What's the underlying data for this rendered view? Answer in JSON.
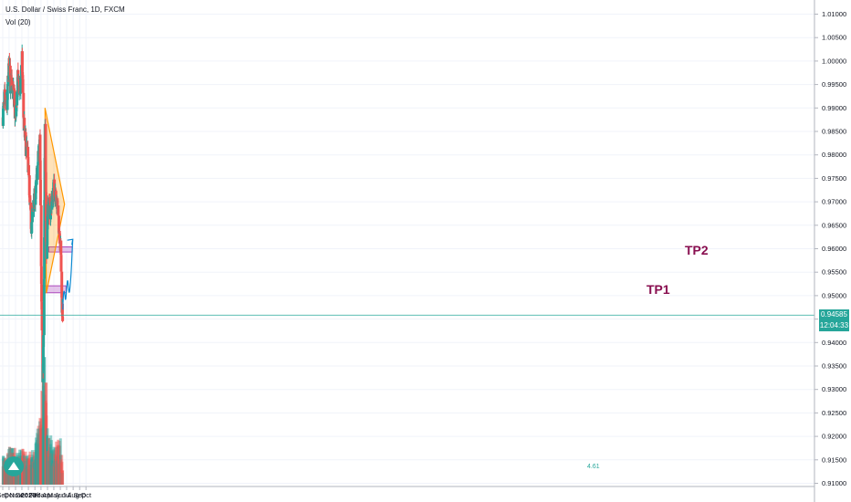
{
  "legend": {
    "symbol_line": "U.S. Dollar / Swiss Franc, 1D, FXCM",
    "volume_line": "Vol (20)"
  },
  "price_scale": {
    "current_price": "0.94585",
    "countdown": "12:04:33",
    "badge_color": "#26a69a",
    "countdown_color": "#26a69a"
  },
  "annotations": {
    "tp1": "TP1",
    "tp2": "TP2",
    "triangle_color": "#ff9800",
    "zone_color": "#ce93d8",
    "tp_color": "#880e4f",
    "path_color": "#0c8ad2",
    "volume_note": "4.61"
  },
  "chart_data": {
    "type": "candlestick",
    "title": "U.S. Dollar / Swiss Franc, 1D, FXCM",
    "indicator": "Vol (20)",
    "up_color": "#26a69a",
    "down_color": "#ef5350",
    "y_ticks": [
      "1.01000",
      "1.00500",
      "1.00000",
      "0.99500",
      "0.99000",
      "0.98500",
      "0.98000",
      "0.97500",
      "0.97000",
      "0.96500",
      "0.96000",
      "0.95500",
      "0.95000",
      "0.94500",
      "0.94000",
      "0.93500",
      "0.93000",
      "0.92500",
      "0.92000",
      "0.91500",
      "0.91000"
    ],
    "ylim": [
      0.91,
      1.0125
    ],
    "x_ticks": [
      "Sep",
      "Oct",
      "Nov",
      "Dec",
      "2020",
      "Feb",
      "Mar",
      "Apr",
      "May",
      "Jun",
      "Jul",
      "Aug",
      "Sep",
      "Oct"
    ],
    "close_path": [
      {
        "date": "2019-09-01",
        "close": 0.988
      },
      {
        "date": "2019-09-10",
        "close": 0.992
      },
      {
        "date": "2019-09-20",
        "close": 0.99
      },
      {
        "date": "2019-10-01",
        "close": 0.999
      },
      {
        "date": "2019-10-08",
        "close": 0.995
      },
      {
        "date": "2019-10-15",
        "close": 0.996
      },
      {
        "date": "2019-10-25",
        "close": 0.992
      },
      {
        "date": "2019-11-01",
        "close": 0.987
      },
      {
        "date": "2019-11-12",
        "close": 0.996
      },
      {
        "date": "2019-11-22",
        "close": 0.993
      },
      {
        "date": "2019-12-02",
        "close": 1.0
      },
      {
        "date": "2019-12-10",
        "close": 0.987
      },
      {
        "date": "2019-12-20",
        "close": 0.982
      },
      {
        "date": "2020-01-01",
        "close": 0.978
      },
      {
        "date": "2020-01-06",
        "close": 0.97
      },
      {
        "date": "2020-01-15",
        "close": 0.965
      },
      {
        "date": "2020-01-25",
        "close": 0.969
      },
      {
        "date": "2020-02-05",
        "close": 0.972
      },
      {
        "date": "2020-02-15",
        "close": 0.978
      },
      {
        "date": "2020-02-25",
        "close": 0.984
      },
      {
        "date": "2020-03-01",
        "close": 0.962
      },
      {
        "date": "2020-03-09",
        "close": 0.931
      },
      {
        "date": "2020-03-15",
        "close": 0.945
      },
      {
        "date": "2020-03-20",
        "close": 0.986
      },
      {
        "date": "2020-03-28",
        "close": 0.956
      },
      {
        "date": "2020-04-02",
        "close": 0.97
      },
      {
        "date": "2020-04-15",
        "close": 0.968
      },
      {
        "date": "2020-05-01",
        "close": 0.973
      },
      {
        "date": "2020-05-15",
        "close": 0.97
      },
      {
        "date": "2020-05-26",
        "close": 0.965
      },
      {
        "date": "2020-06-03",
        "close": 0.96
      },
      {
        "date": "2020-06-08",
        "close": 0.949
      },
      {
        "date": "2020-06-12",
        "close": 0.9459
      }
    ],
    "volume_profile": [
      {
        "date": "2019-09-01",
        "level": 0.2
      },
      {
        "date": "2019-10-01",
        "level": 0.24
      },
      {
        "date": "2019-11-01",
        "level": 0.22
      },
      {
        "date": "2019-12-01",
        "level": 0.22
      },
      {
        "date": "2020-01-01",
        "level": 0.2
      },
      {
        "date": "2020-02-01",
        "level": 0.22
      },
      {
        "date": "2020-03-01",
        "level": 0.55
      },
      {
        "date": "2020-03-20",
        "level": 1.0
      },
      {
        "date": "2020-04-01",
        "level": 0.35
      },
      {
        "date": "2020-05-01",
        "level": 0.25
      },
      {
        "date": "2020-06-01",
        "level": 0.3
      },
      {
        "date": "2020-06-12",
        "level": 0.12
      }
    ]
  }
}
